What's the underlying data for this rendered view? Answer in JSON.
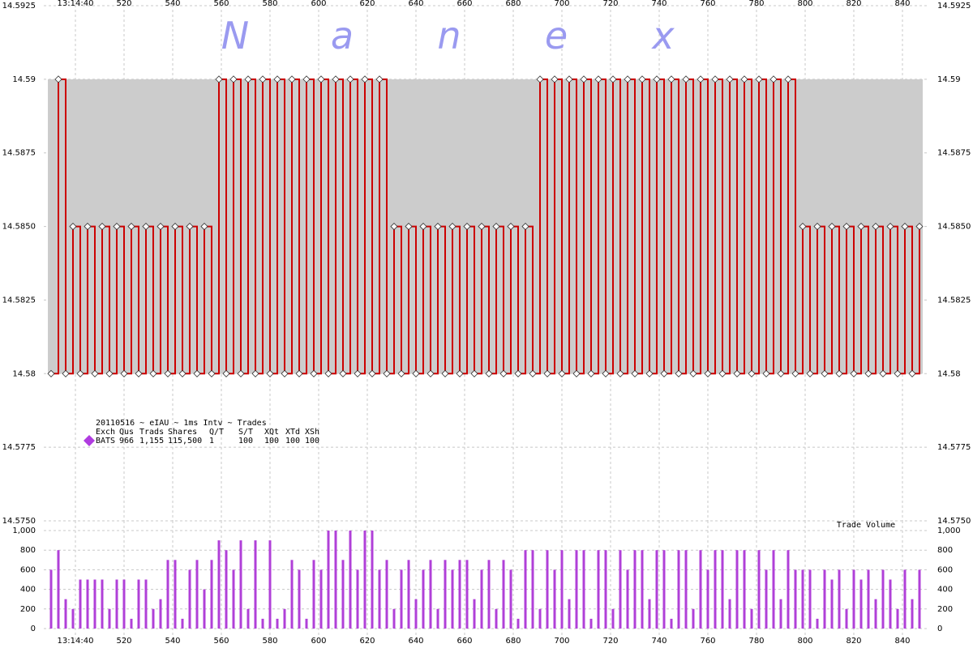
{
  "chart_data": [
    {
      "type": "line",
      "watermark": [
        "N",
        "a",
        "n",
        "e",
        "x"
      ],
      "legend": {
        "title": "20110516 ~ eIAU ~ 1ms Intv ~ Trades",
        "header": [
          "Exch",
          "Qus",
          "Trads",
          "Shares",
          "Q/T",
          "S/T",
          "XQt",
          "XTd",
          "XSh"
        ],
        "row": [
          "BATS",
          "966",
          "1,155",
          "115,500",
          "1",
          "100",
          "100",
          "100",
          "100"
        ],
        "color": "#b03ce0"
      },
      "xlim": [
        487,
        851
      ],
      "xticks": [
        {
          "value": 500,
          "label": "13:14:40"
        },
        520,
        540,
        560,
        580,
        600,
        620,
        640,
        660,
        680,
        700,
        720,
        740,
        760,
        780,
        800,
        820,
        840
      ],
      "ylim": [
        14.575,
        14.5925
      ],
      "yticks": [
        {
          "value": 14.575,
          "label": "14.5750"
        },
        14.5775,
        14.58,
        14.5825,
        {
          "value": 14.585,
          "label": "14.5850"
        },
        14.5875,
        14.59,
        14.5925
      ],
      "grid": true,
      "x": [
        490,
        493,
        496,
        499,
        502,
        505,
        508,
        511,
        514,
        517,
        520,
        523,
        526,
        529,
        532,
        535,
        538,
        541,
        544,
        547,
        550,
        553,
        556,
        559,
        562,
        565,
        568,
        571,
        574,
        577,
        580,
        583,
        586,
        589,
        592,
        595,
        598,
        601,
        604,
        607,
        610,
        613,
        616,
        619,
        622,
        625,
        628,
        631,
        634,
        637,
        640,
        643,
        646,
        649,
        652,
        655,
        658,
        661,
        664,
        667,
        670,
        673,
        676,
        679,
        682,
        685,
        688,
        691,
        694,
        697,
        700,
        703,
        706,
        709,
        712,
        715,
        718,
        721,
        724,
        727,
        730,
        733,
        736,
        739,
        742,
        745,
        748,
        751,
        754,
        757,
        760,
        763,
        766,
        769,
        772,
        775,
        778,
        781,
        784,
        787,
        790,
        793,
        796,
        799,
        802,
        805,
        808,
        811,
        814,
        817,
        820,
        823,
        826,
        829,
        832,
        835,
        838,
        841,
        844,
        847
      ],
      "series": [
        {
          "color": "#cc0000",
          "values": [
            14.58,
            14.59,
            14.58,
            14.585,
            14.58,
            14.585,
            14.58,
            14.585,
            14.58,
            14.585,
            14.58,
            14.585,
            14.58,
            14.585,
            14.58,
            14.585,
            14.58,
            14.585,
            14.58,
            14.585,
            14.58,
            14.585,
            14.58,
            14.59,
            14.58,
            14.59,
            14.58,
            14.59,
            14.58,
            14.59,
            14.58,
            14.59,
            14.58,
            14.59,
            14.58,
            14.59,
            14.58,
            14.59,
            14.58,
            14.59,
            14.58,
            14.59,
            14.58,
            14.59,
            14.58,
            14.59,
            14.58,
            14.585,
            14.58,
            14.585,
            14.58,
            14.585,
            14.58,
            14.585,
            14.58,
            14.585,
            14.58,
            14.585,
            14.58,
            14.585,
            14.58,
            14.585,
            14.58,
            14.585,
            14.58,
            14.585,
            14.58,
            14.59,
            14.58,
            14.59,
            14.58,
            14.59,
            14.58,
            14.59,
            14.58,
            14.59,
            14.58,
            14.59,
            14.58,
            14.59,
            14.58,
            14.59,
            14.58,
            14.59,
            14.58,
            14.59,
            14.58,
            14.59,
            14.58,
            14.59,
            14.58,
            14.59,
            14.58,
            14.59,
            14.58,
            14.59,
            14.58,
            14.59,
            14.58,
            14.59,
            14.58,
            14.59,
            14.58,
            14.585,
            14.58,
            14.585,
            14.58,
            14.585,
            14.58,
            14.585,
            14.58,
            14.585,
            14.58,
            14.585,
            14.58,
            14.585,
            14.58,
            14.585,
            14.58,
            14.585
          ]
        }
      ]
    },
    {
      "type": "bar",
      "title": "Trade Volume",
      "color": "#b040d8",
      "xlim": [
        487,
        851
      ],
      "xticks": [
        {
          "value": 500,
          "label": "13:14:40"
        },
        520,
        540,
        560,
        580,
        600,
        620,
        640,
        660,
        680,
        700,
        720,
        740,
        760,
        780,
        800,
        820,
        840
      ],
      "ylim": [
        0,
        1000
      ],
      "yticks": [
        0,
        200,
        400,
        600,
        800,
        {
          "value": 1000,
          "label": "1,000"
        }
      ],
      "grid": true,
      "x": [
        490,
        493,
        496,
        499,
        502,
        505,
        508,
        511,
        514,
        517,
        520,
        523,
        526,
        529,
        532,
        535,
        538,
        541,
        544,
        547,
        550,
        553,
        556,
        559,
        562,
        565,
        568,
        571,
        574,
        577,
        580,
        583,
        586,
        589,
        592,
        595,
        598,
        601,
        604,
        607,
        610,
        613,
        616,
        619,
        622,
        625,
        628,
        631,
        634,
        637,
        640,
        643,
        646,
        649,
        652,
        655,
        658,
        661,
        664,
        667,
        670,
        673,
        676,
        679,
        682,
        685,
        688,
        691,
        694,
        697,
        700,
        703,
        706,
        709,
        712,
        715,
        718,
        721,
        724,
        727,
        730,
        733,
        736,
        739,
        742,
        745,
        748,
        751,
        754,
        757,
        760,
        763,
        766,
        769,
        772,
        775,
        778,
        781,
        784,
        787,
        790,
        793,
        796,
        799,
        802,
        805,
        808,
        811,
        814,
        817,
        820,
        823,
        826,
        829,
        832,
        835,
        838,
        841,
        844,
        847
      ],
      "values": [
        600,
        800,
        300,
        200,
        500,
        500,
        500,
        500,
        200,
        500,
        500,
        100,
        500,
        500,
        200,
        300,
        700,
        700,
        100,
        600,
        700,
        400,
        700,
        900,
        800,
        600,
        900,
        200,
        900,
        100,
        900,
        100,
        200,
        700,
        600,
        100,
        700,
        600,
        1000,
        1000,
        700,
        1000,
        600,
        1000,
        1000,
        600,
        700,
        200,
        600,
        700,
        300,
        600,
        700,
        200,
        700,
        600,
        700,
        700,
        300,
        600,
        700,
        200,
        700,
        600,
        100,
        800,
        800,
        200,
        800,
        600,
        800,
        300,
        800,
        800,
        100,
        800,
        800,
        200,
        800,
        600,
        800,
        800,
        300,
        800,
        800,
        100,
        800,
        800,
        200,
        800,
        600,
        800,
        800,
        300,
        800,
        800,
        200,
        800,
        600,
        800,
        300,
        800,
        600,
        600,
        600,
        100,
        600,
        500,
        600,
        200,
        600,
        500,
        600,
        300,
        600,
        500,
        200,
        600,
        300,
        600
      ]
    }
  ]
}
